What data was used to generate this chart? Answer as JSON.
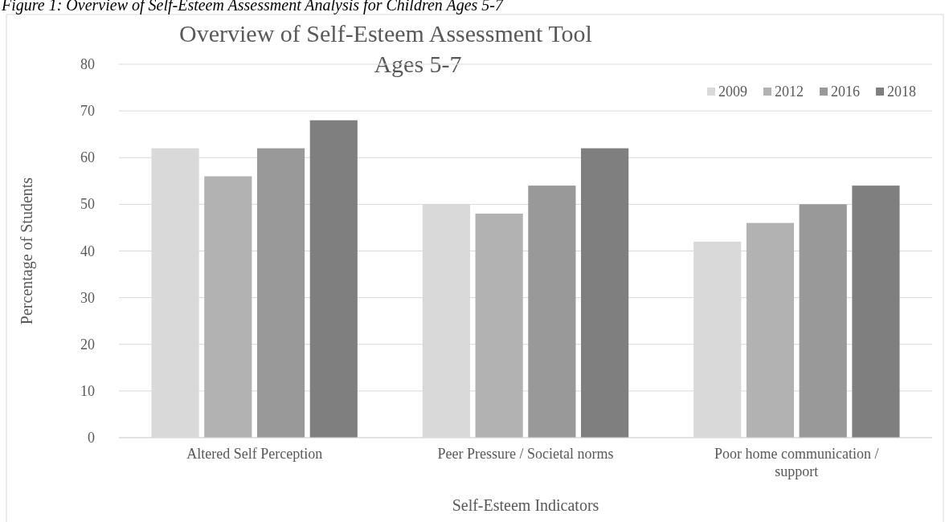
{
  "chart_data": {
    "type": "bar",
    "title": "Overview of Self-Esteem Assessment Tool",
    "subtitle": "Ages 5-7",
    "xlabel": "Self-Esteem Indicators",
    "ylabel": "Percentage of Students",
    "annotations": [
      "Figure 1: Overview of Self-Esteem Assessment Analysis for Children Ages 5-7"
    ],
    "categories": [
      "Altered Self Perception",
      "Peer Pressure / Societal norms",
      "Poor home communication / support"
    ],
    "series": [
      {
        "name": "2009",
        "color": "#d9d9d9",
        "values": [
          62,
          50,
          42
        ]
      },
      {
        "name": "2012",
        "color": "#b2b2b2",
        "values": [
          56,
          48,
          46
        ]
      },
      {
        "name": "2016",
        "color": "#999999",
        "values": [
          62,
          54,
          50
        ]
      },
      {
        "name": "2018",
        "color": "#7f7f7f",
        "values": [
          68,
          62,
          54
        ]
      }
    ],
    "ylim": [
      0,
      80
    ],
    "yticks": [
      0,
      10,
      20,
      30,
      40,
      50,
      60,
      70,
      80
    ],
    "grid": "y",
    "legend": "top right"
  }
}
